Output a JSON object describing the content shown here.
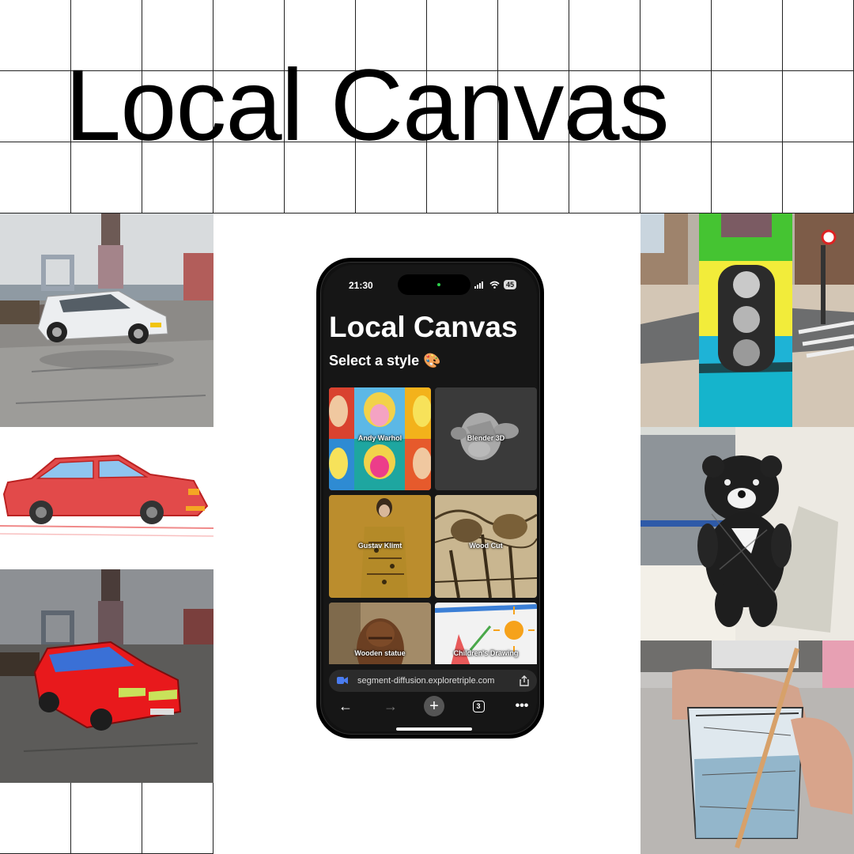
{
  "hero": {
    "title": "Local Canvas"
  },
  "phone": {
    "status_bar": {
      "time": "21:30",
      "battery": "45"
    },
    "app": {
      "title": "Local Canvas",
      "subtitle": "Select a style 🎨",
      "styles": [
        {
          "label": "Andy Warhol"
        },
        {
          "label": "Blender 3D"
        },
        {
          "label": "Gustav Klimt"
        },
        {
          "label": "Wood Cut"
        },
        {
          "label": "Wooden statue"
        },
        {
          "label": "Children's Drawing"
        }
      ]
    },
    "browser": {
      "url": "segment-diffusion.exploretriple.com",
      "tab_count": "3",
      "icons": [
        "back-arrow-icon",
        "forward-arrow-icon",
        "plus-icon",
        "tabs-icon",
        "more-icon",
        "share-icon",
        "video-icon"
      ]
    }
  },
  "showcase": {
    "left": [
      "photo-white-car",
      "childs-drawing-red-car",
      "red-drawn-car-photo"
    ],
    "right": [
      "knitted-traffic-light",
      "woodcut-teddy-bear",
      "sketched-glass"
    ]
  },
  "colors": {
    "accent_red": "#e11b1b",
    "phone_bg": "#161616"
  }
}
